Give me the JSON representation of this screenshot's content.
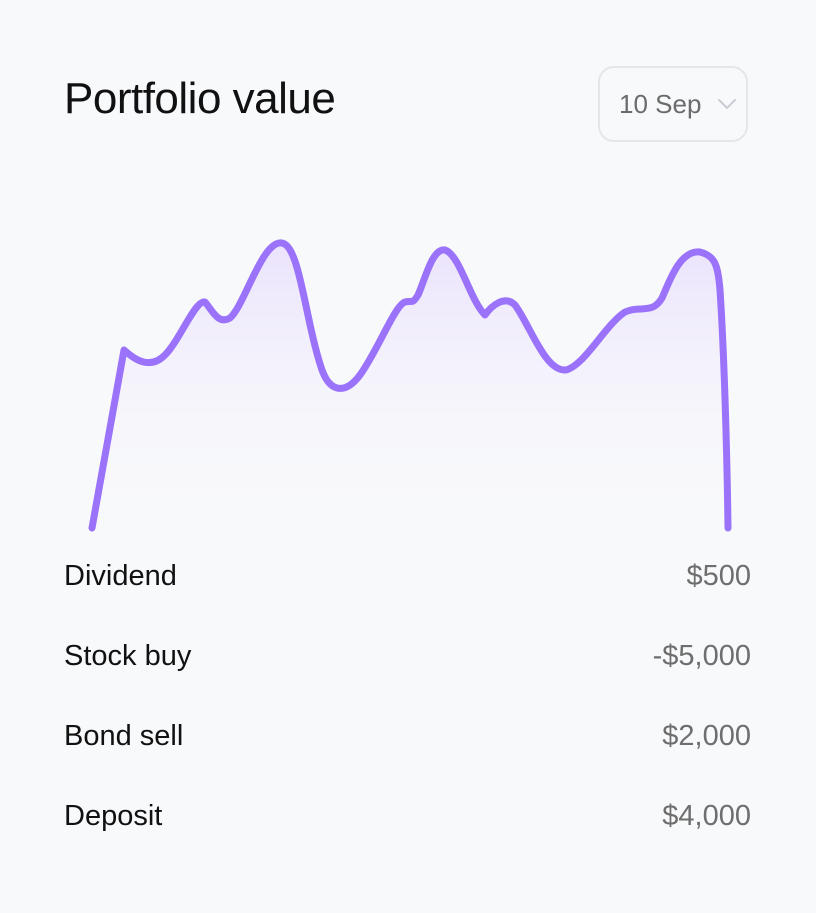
{
  "header": {
    "title": "Portfolio value"
  },
  "date_select": {
    "value": "10 Sep",
    "icon": "chevron-down-icon"
  },
  "chart": {
    "line_color": "#9b72fa",
    "fill_color": "#efe9fd"
  },
  "transactions": [
    {
      "name": "Dividend",
      "amount": "$500"
    },
    {
      "name": "Stock buy",
      "amount": "-$5,000"
    },
    {
      "name": "Bond sell",
      "amount": "$2,000"
    },
    {
      "name": "Deposit",
      "amount": "$4,000"
    }
  ]
}
